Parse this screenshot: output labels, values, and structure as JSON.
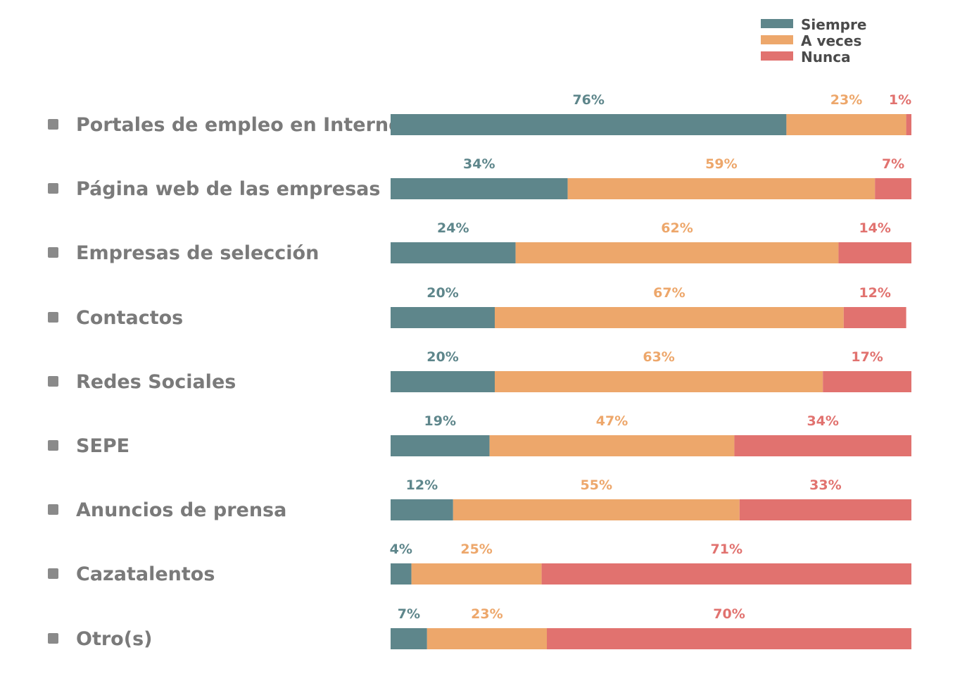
{
  "chart_data": {
    "type": "bar",
    "orientation": "horizontal",
    "stacked": true,
    "percent_stacked": true,
    "title": "",
    "xlabel": "",
    "ylabel": "",
    "xlim": [
      0,
      100
    ],
    "grid": false,
    "legend_position": "top-right",
    "categories": [
      "Portales de empleo en Internet",
      "Página web de las empresas",
      "Empresas de selección",
      "Contactos",
      "Redes Sociales",
      "SEPE",
      "Anuncios de prensa",
      "Cazatalentos",
      "Otro(s)"
    ],
    "series": [
      {
        "name": "Siempre",
        "color": "#5e868b",
        "values": [
          76,
          34,
          24,
          20,
          20,
          19,
          12,
          4,
          7
        ]
      },
      {
        "name": "A veces",
        "color": "#eda76b",
        "values": [
          23,
          59,
          62,
          67,
          63,
          47,
          55,
          25,
          23
        ]
      },
      {
        "name": "Nunca",
        "color": "#e1726f",
        "values": [
          1,
          7,
          14,
          12,
          17,
          34,
          33,
          71,
          70
        ]
      }
    ],
    "value_labels": [
      [
        "76%",
        "23%",
        "1%"
      ],
      [
        "34%",
        "59%",
        "7%"
      ],
      [
        "24%",
        "62%",
        "14%"
      ],
      [
        "20%",
        "67%",
        "12%"
      ],
      [
        "20%",
        "63%",
        "17%"
      ],
      [
        "19%",
        "47%",
        "34%"
      ],
      [
        "12%",
        "55%",
        "33%"
      ],
      [
        "4%",
        "25%",
        "71%"
      ],
      [
        "7%",
        "23%",
        "70%"
      ]
    ],
    "bullet_color": "#8a8a8a"
  }
}
